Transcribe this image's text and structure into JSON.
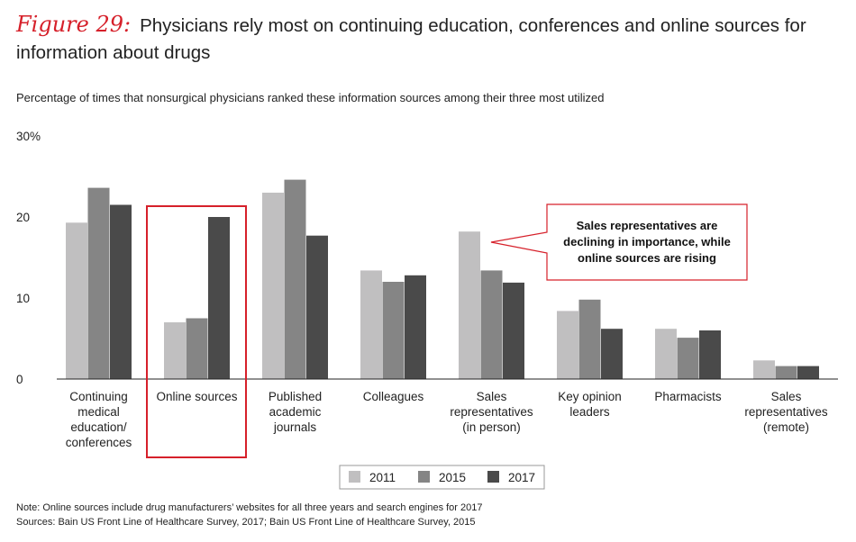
{
  "figure": {
    "label": "Figure 29:",
    "title": "Physicians rely most on continuing education, conferences and online sources for information about drugs",
    "subtitle": "Percentage of times that nonsurgical physicians ranked these information sources among their three most utilized",
    "callout": "Sales representatives are declining in importance, while online sources are rising",
    "note": "Note: Online sources include drug manufacturers’ websites for all three years and search engines for 2017",
    "sources": "Sources: Bain US Front Line of Healthcare Survey, 2017; Bain US Front Line of Healthcare Survey, 2015"
  },
  "colors": {
    "accent": "#d6202a",
    "series_2011": "#c0bfc0",
    "series_2015": "#858585",
    "series_2017": "#4a4a4a"
  },
  "chart_data": {
    "type": "bar",
    "categories": [
      [
        "Continuing",
        "medical",
        "education/",
        "conferences"
      ],
      [
        "Online sources"
      ],
      [
        "Published",
        "academic",
        "journals"
      ],
      [
        "Colleagues"
      ],
      [
        "Sales",
        "representatives",
        "(in person)"
      ],
      [
        "Key opinion",
        "leaders"
      ],
      [
        "Pharmacists"
      ],
      [
        "Sales",
        "representatives",
        "(remote)"
      ]
    ],
    "series": [
      {
        "name": "2011",
        "values": [
          19.3,
          7.0,
          23.0,
          13.4,
          18.2,
          8.4,
          6.2,
          2.3
        ]
      },
      {
        "name": "2015",
        "values": [
          23.6,
          7.5,
          24.6,
          12.0,
          13.4,
          9.8,
          5.1,
          1.6
        ]
      },
      {
        "name": "2017",
        "values": [
          21.5,
          20.0,
          17.7,
          12.8,
          11.9,
          6.2,
          6.0,
          1.6
        ]
      }
    ],
    "ylim": [
      0,
      30
    ],
    "yticks": [
      "0",
      "10",
      "20",
      "30%"
    ],
    "highlight_category": 1,
    "legend_position": "bottom-center",
    "grid": false
  }
}
